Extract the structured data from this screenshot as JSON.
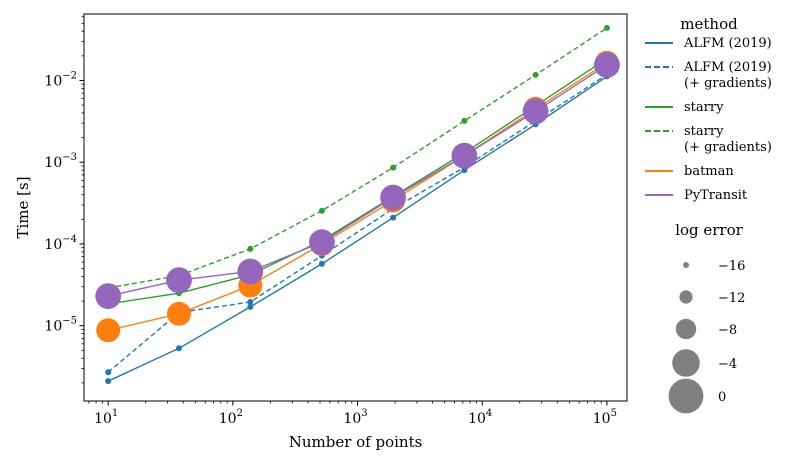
{
  "chart_data": {
    "type": "line",
    "title": "",
    "xlabel": "Number of points",
    "ylabel": "Time [s]",
    "xscale": "log",
    "yscale": "log",
    "xlim": [
      6.4,
      145000
    ],
    "ylim": [
      1.2e-06,
      0.065
    ],
    "x_ticks": [
      {
        "value": 10,
        "base": "10",
        "exp": "1"
      },
      {
        "value": 100,
        "base": "10",
        "exp": "2"
      },
      {
        "value": 1000,
        "base": "10",
        "exp": "3"
      },
      {
        "value": 10000,
        "base": "10",
        "exp": "4"
      },
      {
        "value": 100000,
        "base": "10",
        "exp": "5"
      }
    ],
    "y_ticks": [
      {
        "value": 1e-05,
        "base": "10",
        "exp": "−5"
      },
      {
        "value": 0.0001,
        "base": "10",
        "exp": "−4"
      },
      {
        "value": 0.001,
        "base": "10",
        "exp": "−3"
      },
      {
        "value": 0.01,
        "base": "10",
        "exp": "−2"
      }
    ],
    "x": [
      10,
      37,
      138,
      518,
      1930,
      7200,
      26800,
      100000
    ],
    "series": [
      {
        "name": "ALFM (2019)",
        "color": "#1f77b4",
        "dash": "solid",
        "values": [
          2.1e-06,
          5.3e-06,
          1.7e-05,
          5.7e-05,
          0.00021,
          0.0008,
          0.0029,
          0.0112
        ],
        "log_error": [
          -16,
          -16,
          -16,
          -16,
          -16,
          -16,
          -16,
          -16
        ]
      },
      {
        "name": "ALFM (2019) (+ gradients)",
        "color": "#1f77b4",
        "dash": "dashed",
        "values": [
          2.7e-06,
          1.45e-05,
          1.95e-05,
          7.2e-05,
          0.00027,
          0.00087,
          0.0032,
          0.0118
        ],
        "log_error": [
          -16,
          -16,
          -16,
          -16,
          -16,
          -16,
          -16,
          -16
        ]
      },
      {
        "name": "starry",
        "color": "#2ca02c",
        "dash": "solid",
        "values": [
          1.85e-05,
          2.5e-05,
          4.2e-05,
          0.00011,
          0.00038,
          0.0013,
          0.0049,
          0.0185
        ],
        "log_error": [
          -16,
          -16,
          -16,
          -16,
          -16,
          -16,
          -16,
          -16
        ]
      },
      {
        "name": "starry (+ gradients)",
        "color": "#2ca02c",
        "dash": "dashed",
        "values": [
          2.9e-05,
          4.1e-05,
          8.7e-05,
          0.000255,
          0.00086,
          0.0032,
          0.0117,
          0.044
        ],
        "log_error": [
          -16,
          -16,
          -16,
          -16,
          -16,
          -16,
          -16,
          -16
        ]
      },
      {
        "name": "batman",
        "color": "#ff7f0e",
        "dash": "solid",
        "values": [
          8.8e-06,
          1.4e-05,
          3.1e-05,
          0.0001,
          0.00034,
          0.0012,
          0.0045,
          0.0165
        ],
        "log_error": [
          -6,
          -6,
          -6,
          -6,
          -6,
          -6,
          -6,
          -6
        ]
      },
      {
        "name": "PyTransit",
        "color": "#9467bd",
        "dash": "solid",
        "values": [
          2.3e-05,
          3.6e-05,
          4.6e-05,
          0.000105,
          0.00037,
          0.0012,
          0.0042,
          0.0155
        ],
        "log_error": [
          -5,
          -5,
          -5,
          -5,
          -5,
          -5,
          -5,
          -5
        ]
      }
    ],
    "legend": {
      "title": "method",
      "placement": "right",
      "entries": [
        {
          "lines": [
            "ALFM (2019)"
          ],
          "color": "#1f77b4",
          "dash": "solid"
        },
        {
          "lines": [
            "ALFM (2019)",
            "(+ gradients)"
          ],
          "color": "#1f77b4",
          "dash": "dashed"
        },
        {
          "lines": [
            "starry"
          ],
          "color": "#2ca02c",
          "dash": "solid"
        },
        {
          "lines": [
            "starry",
            "(+ gradients)"
          ],
          "color": "#2ca02c",
          "dash": "dashed"
        },
        {
          "lines": [
            "batman"
          ],
          "color": "#ff7f0e",
          "dash": "solid"
        },
        {
          "lines": [
            "PyTransit"
          ],
          "color": "#9467bd",
          "dash": "solid"
        }
      ]
    },
    "size_legend": {
      "title": "log error",
      "color": "#808080",
      "entries": [
        {
          "label": "−16",
          "value": -16
        },
        {
          "label": "−12",
          "value": -12
        },
        {
          "label": "−8",
          "value": -8
        },
        {
          "label": "−4",
          "value": -4
        },
        {
          "label": "0",
          "value": 0
        }
      ]
    }
  }
}
